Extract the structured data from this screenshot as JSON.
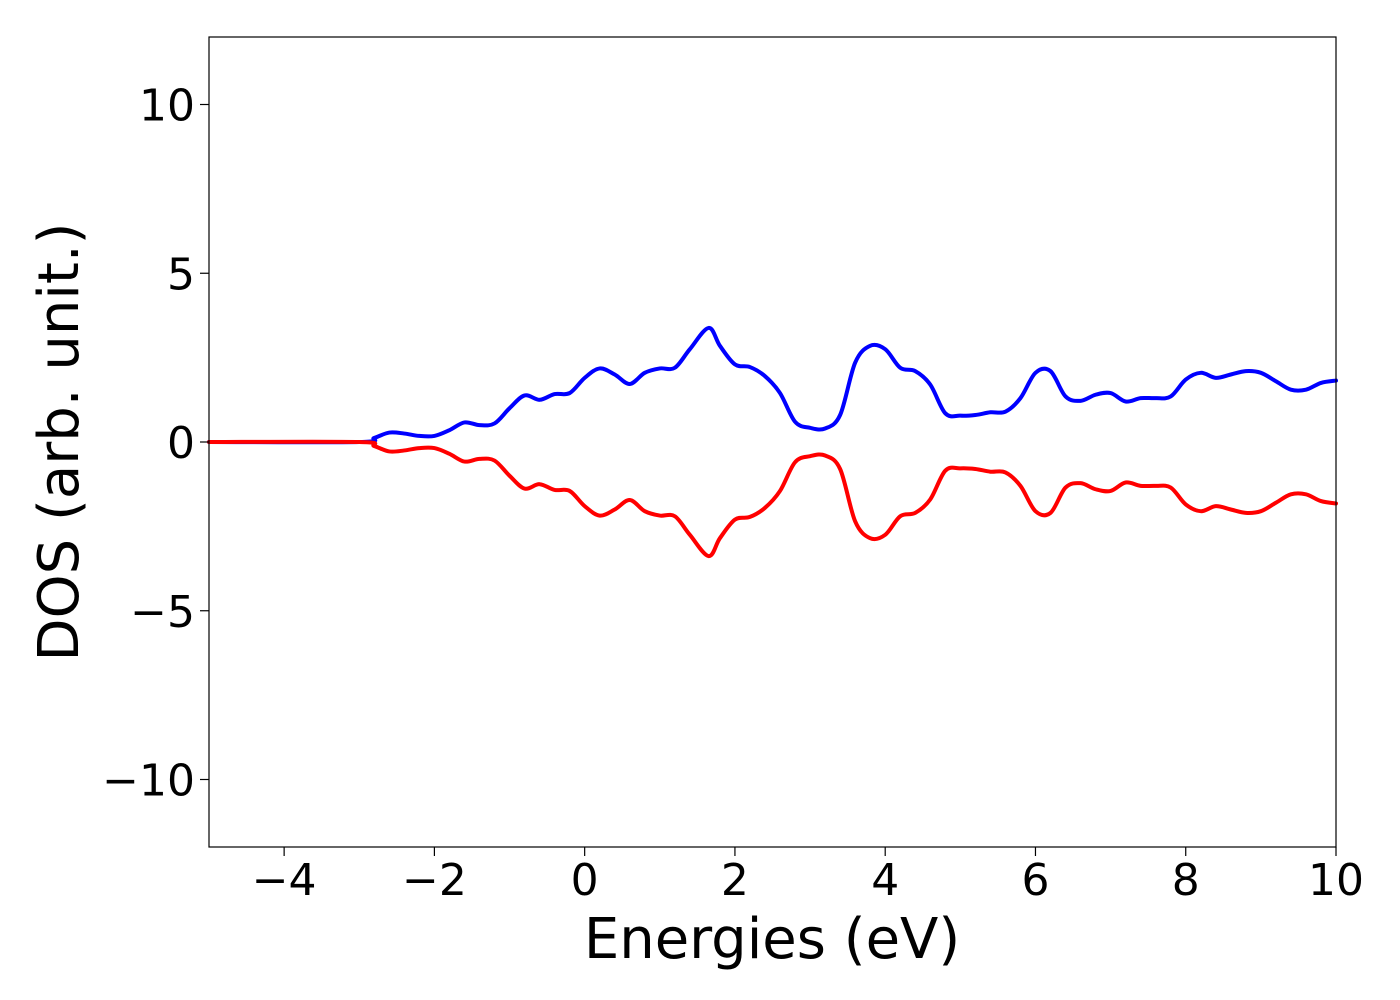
{
  "chart_data": {
    "type": "line",
    "title": "",
    "xlabel": "Energies (eV)",
    "ylabel": "DOS (arb. unit.)",
    "xlim": [
      -5,
      10
    ],
    "ylim": [
      -12,
      12
    ],
    "grid": false,
    "xticks": [
      -4,
      -2,
      0,
      2,
      4,
      6,
      8,
      10
    ],
    "xtick_labels": [
      "−4",
      "−2",
      "0",
      "2",
      "4",
      "6",
      "8",
      "10"
    ],
    "yticks": [
      10,
      5,
      0,
      -5,
      -10
    ],
    "ytick_labels": [
      "10",
      "5",
      "0",
      "−5",
      "−10"
    ],
    "series": [
      {
        "color": "#0000ff",
        "x": [
          -5,
          -3.0,
          -2.8,
          -2.6,
          -2.4,
          -2.2,
          -2.0,
          -1.8,
          -1.6,
          -1.4,
          -1.2,
          -1.0,
          -0.8,
          -0.6,
          -0.4,
          -0.2,
          0.0,
          0.2,
          0.4,
          0.6,
          0.8,
          1.0,
          1.2,
          1.4,
          1.65,
          1.8,
          2.0,
          2.2,
          2.4,
          2.6,
          2.8,
          3.0,
          3.2,
          3.4,
          3.6,
          3.8,
          4.0,
          4.2,
          4.4,
          4.6,
          4.8,
          5.0,
          5.2,
          5.4,
          5.6,
          5.8,
          6.0,
          6.2,
          6.4,
          6.6,
          6.8,
          7.0,
          7.2,
          7.4,
          7.6,
          7.8,
          8.0,
          8.2,
          8.4,
          8.6,
          8.8,
          9.0,
          9.2,
          9.4,
          9.6,
          9.8,
          10.0
        ],
        "y": [
          0,
          0,
          0.12,
          0.28,
          0.25,
          0.18,
          0.18,
          0.35,
          0.58,
          0.5,
          0.55,
          1.0,
          1.38,
          1.25,
          1.42,
          1.45,
          1.9,
          2.18,
          2.0,
          1.72,
          2.05,
          2.18,
          2.2,
          2.75,
          3.38,
          2.85,
          2.3,
          2.22,
          1.95,
          1.45,
          0.6,
          0.42,
          0.4,
          0.8,
          2.35,
          2.85,
          2.75,
          2.2,
          2.1,
          1.7,
          0.85,
          0.78,
          0.8,
          0.88,
          0.9,
          1.3,
          2.05,
          2.1,
          1.35,
          1.22,
          1.4,
          1.45,
          1.2,
          1.3,
          1.3,
          1.35,
          1.85,
          2.05,
          1.9,
          2.0,
          2.1,
          2.05,
          1.8,
          1.55,
          1.55,
          1.75,
          1.82
        ]
      },
      {
        "color": "#ff0000",
        "x": [
          -5,
          -3.0,
          -2.8,
          -2.6,
          -2.4,
          -2.2,
          -2.0,
          -1.8,
          -1.6,
          -1.4,
          -1.2,
          -1.0,
          -0.8,
          -0.6,
          -0.4,
          -0.2,
          0.0,
          0.2,
          0.4,
          0.6,
          0.8,
          1.0,
          1.2,
          1.4,
          1.65,
          1.8,
          2.0,
          2.2,
          2.4,
          2.6,
          2.8,
          3.0,
          3.2,
          3.4,
          3.6,
          3.8,
          4.0,
          4.2,
          4.4,
          4.6,
          4.8,
          5.0,
          5.2,
          5.4,
          5.6,
          5.8,
          6.0,
          6.2,
          6.4,
          6.6,
          6.8,
          7.0,
          7.2,
          7.4,
          7.6,
          7.8,
          8.0,
          8.2,
          8.4,
          8.6,
          8.8,
          9.0,
          9.2,
          9.4,
          9.6,
          9.8,
          10.0
        ],
        "y": [
          0,
          0,
          -0.12,
          -0.28,
          -0.25,
          -0.18,
          -0.18,
          -0.35,
          -0.58,
          -0.5,
          -0.55,
          -1.0,
          -1.38,
          -1.25,
          -1.42,
          -1.45,
          -1.9,
          -2.18,
          -2.0,
          -1.72,
          -2.05,
          -2.18,
          -2.2,
          -2.75,
          -3.38,
          -2.85,
          -2.3,
          -2.22,
          -1.95,
          -1.45,
          -0.6,
          -0.42,
          -0.4,
          -0.8,
          -2.35,
          -2.85,
          -2.75,
          -2.2,
          -2.1,
          -1.7,
          -0.85,
          -0.78,
          -0.8,
          -0.88,
          -0.9,
          -1.3,
          -2.05,
          -2.1,
          -1.35,
          -1.22,
          -1.4,
          -1.45,
          -1.2,
          -1.3,
          -1.3,
          -1.35,
          -1.85,
          -2.05,
          -1.9,
          -2.0,
          -2.1,
          -2.05,
          -1.8,
          -1.55,
          -1.55,
          -1.75,
          -1.82
        ]
      }
    ]
  }
}
